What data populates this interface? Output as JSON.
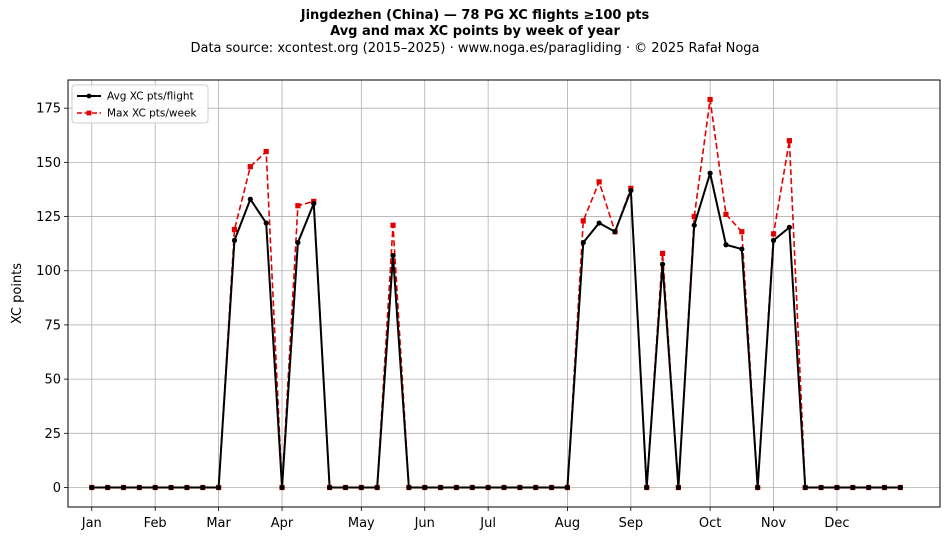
{
  "header": {
    "title": "Jingdezhen (China)  —  78 PG XC flights ≥100 pts",
    "subtitle": "Avg and max XC points by week of year",
    "source": "Data source: xcontest.org (2015–2025)  ·  www.noga.es/paragliding  ·  © 2025 Rafał Noga"
  },
  "chart_data": {
    "type": "line",
    "title": "Jingdezhen (China)  —  78 PG XC flights ≥100 pts",
    "subtitle": "Avg and max XC points by week of year",
    "xlabel": "",
    "ylabel": "XC points",
    "x": [
      1,
      2,
      3,
      4,
      5,
      6,
      7,
      8,
      9,
      10,
      11,
      12,
      13,
      14,
      15,
      16,
      17,
      18,
      19,
      20,
      21,
      22,
      23,
      24,
      25,
      26,
      27,
      28,
      29,
      30,
      31,
      32,
      33,
      34,
      35,
      36,
      37,
      38,
      39,
      40,
      41,
      42,
      43,
      44,
      45,
      46,
      47,
      48,
      49,
      50,
      51,
      52
    ],
    "x_ticks": [
      {
        "label": "Jan",
        "week": 1
      },
      {
        "label": "Feb",
        "week": 5
      },
      {
        "label": "Mar",
        "week": 9
      },
      {
        "label": "Apr",
        "week": 13
      },
      {
        "label": "May",
        "week": 18
      },
      {
        "label": "Jun",
        "week": 22
      },
      {
        "label": "Jul",
        "week": 26
      },
      {
        "label": "Aug",
        "week": 31
      },
      {
        "label": "Sep",
        "week": 35
      },
      {
        "label": "Oct",
        "week": 40
      },
      {
        "label": "Nov",
        "week": 44
      },
      {
        "label": "Dec",
        "week": 48
      }
    ],
    "xlim": [
      -0.5,
      54.5
    ],
    "ylim": [
      -9,
      188
    ],
    "y_ticks": [
      0,
      25,
      50,
      75,
      100,
      125,
      150,
      175
    ],
    "grid": true,
    "legend_position": "top-left",
    "series": [
      {
        "name": "Avg XC pts/flight",
        "color": "#000000",
        "style": "solid",
        "marker": "circle",
        "values": [
          0,
          0,
          0,
          0,
          0,
          0,
          0,
          0,
          0,
          114,
          133,
          122,
          0,
          113,
          131,
          0,
          0,
          0,
          0,
          107,
          0,
          0,
          0,
          0,
          0,
          0,
          0,
          0,
          0,
          0,
          0,
          113,
          122,
          118,
          137,
          0,
          103,
          0,
          121,
          145,
          112,
          110,
          0,
          114,
          120,
          0,
          0,
          0,
          0,
          0,
          0,
          0
        ]
      },
      {
        "name": "Max XC pts/week",
        "color": "#e50000",
        "style": "dashed",
        "marker": "square",
        "values": [
          0,
          0,
          0,
          0,
          0,
          0,
          0,
          0,
          0,
          119,
          148,
          155,
          0,
          130,
          132,
          0,
          0,
          0,
          0,
          121,
          0,
          0,
          0,
          0,
          0,
          0,
          0,
          0,
          0,
          0,
          0,
          123,
          141,
          118,
          138,
          0,
          108,
          0,
          125,
          179,
          126,
          118,
          0,
          117,
          160,
          0,
          0,
          0,
          0,
          0,
          0,
          0
        ]
      }
    ]
  }
}
